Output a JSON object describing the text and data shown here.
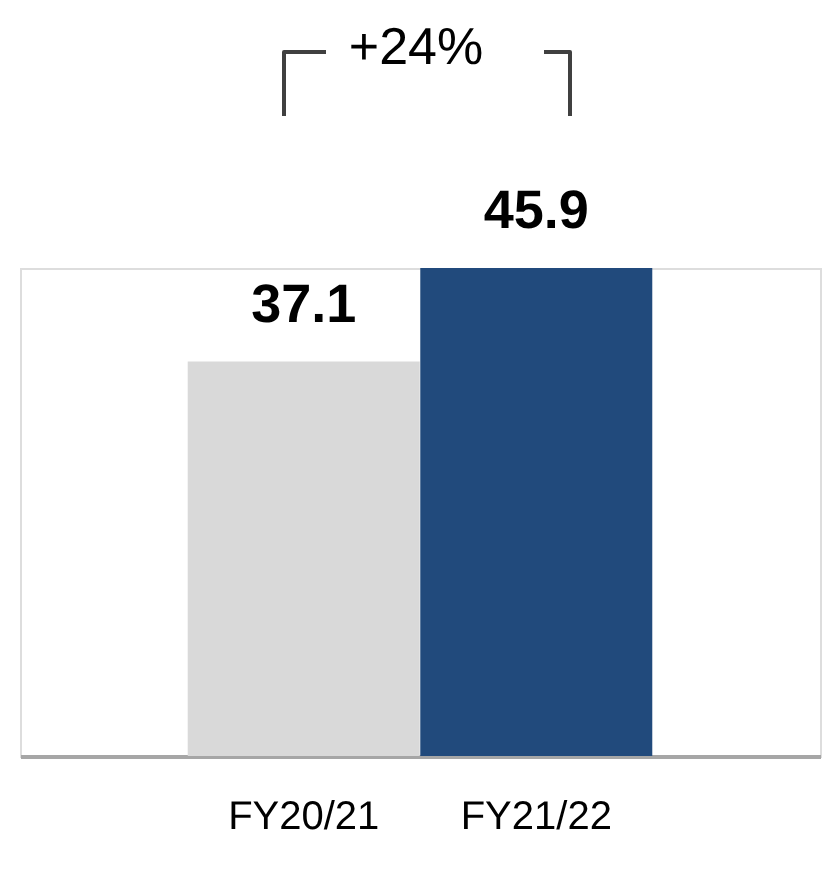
{
  "chart_data": {
    "type": "bar",
    "categories": [
      "FY20/21",
      "FY21/22"
    ],
    "values": [
      37.1,
      45.9
    ],
    "colors": [
      "#d9d9d9",
      "#214a7c"
    ],
    "data_labels": true,
    "annotations": [
      "+24%"
    ],
    "tick_labels": "x"
  }
}
